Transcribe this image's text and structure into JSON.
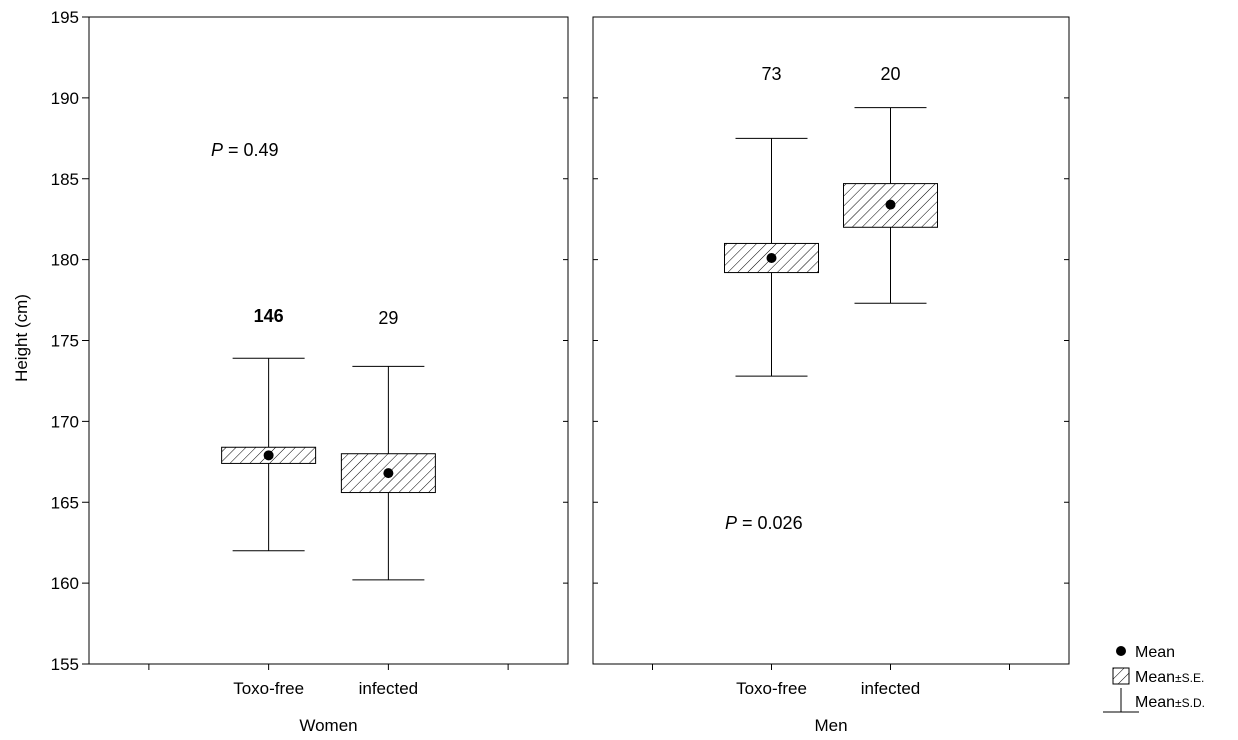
{
  "chart_data": {
    "type": "box",
    "ylabel": "Height (cm)",
    "ylim": [
      155,
      195
    ],
    "yticks": [
      155,
      160,
      165,
      170,
      175,
      180,
      185,
      190,
      195
    ],
    "categories": [
      "Toxo-free",
      "infected"
    ],
    "panels": [
      {
        "name": "Women",
        "p_prefix": "P",
        "p_value": "= 0.49",
        "groups": [
          {
            "category": "Toxo-free",
            "n": "146",
            "mean": 167.9,
            "se_low": 167.4,
            "se_high": 168.4,
            "sd_low": 162.0,
            "sd_high": 173.9
          },
          {
            "category": "infected",
            "n": "29",
            "mean": 166.8,
            "se_low": 165.6,
            "se_high": 168.0,
            "sd_low": 160.2,
            "sd_high": 173.4
          }
        ]
      },
      {
        "name": "Men",
        "p_prefix": "P",
        "p_value": "= 0.026",
        "groups": [
          {
            "category": "Toxo-free",
            "n": "73",
            "mean": 180.1,
            "se_low": 179.2,
            "se_high": 181.0,
            "sd_low": 172.8,
            "sd_high": 187.5
          },
          {
            "category": "infected",
            "n": "20",
            "mean": 183.4,
            "se_low": 182.0,
            "se_high": 184.7,
            "sd_low": 177.3,
            "sd_high": 189.4
          }
        ]
      }
    ],
    "legend": {
      "placement": "bottom-right",
      "items": [
        "Mean",
        "Mean±S.E.",
        "Mean±S.D."
      ]
    }
  }
}
